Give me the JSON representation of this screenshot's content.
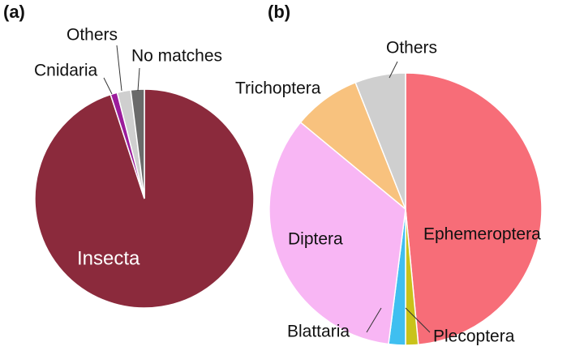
{
  "chart_data": [
    {
      "type": "pie",
      "panel": "(a)",
      "categories": [
        "Insecta",
        "Cnidaria",
        "Others",
        "No matches"
      ],
      "values": [
        95,
        1,
        2,
        2
      ],
      "colors": [
        "#8b2a3c",
        "#9b1c9b",
        "#cfcfcf",
        "#6a6a6a"
      ]
    },
    {
      "type": "pie",
      "panel": "(b)",
      "categories": [
        "Ephemeroptera",
        "Plecoptera",
        "Blattaria",
        "Diptera",
        "Trichoptera",
        "Others"
      ],
      "values": [
        48.5,
        1.5,
        2,
        34,
        8,
        6
      ],
      "colors": [
        "#f76d78",
        "#c9c21a",
        "#3fbff0",
        "#f8b6f4",
        "#f8c27e",
        "#cfcfcf"
      ]
    }
  ]
}
